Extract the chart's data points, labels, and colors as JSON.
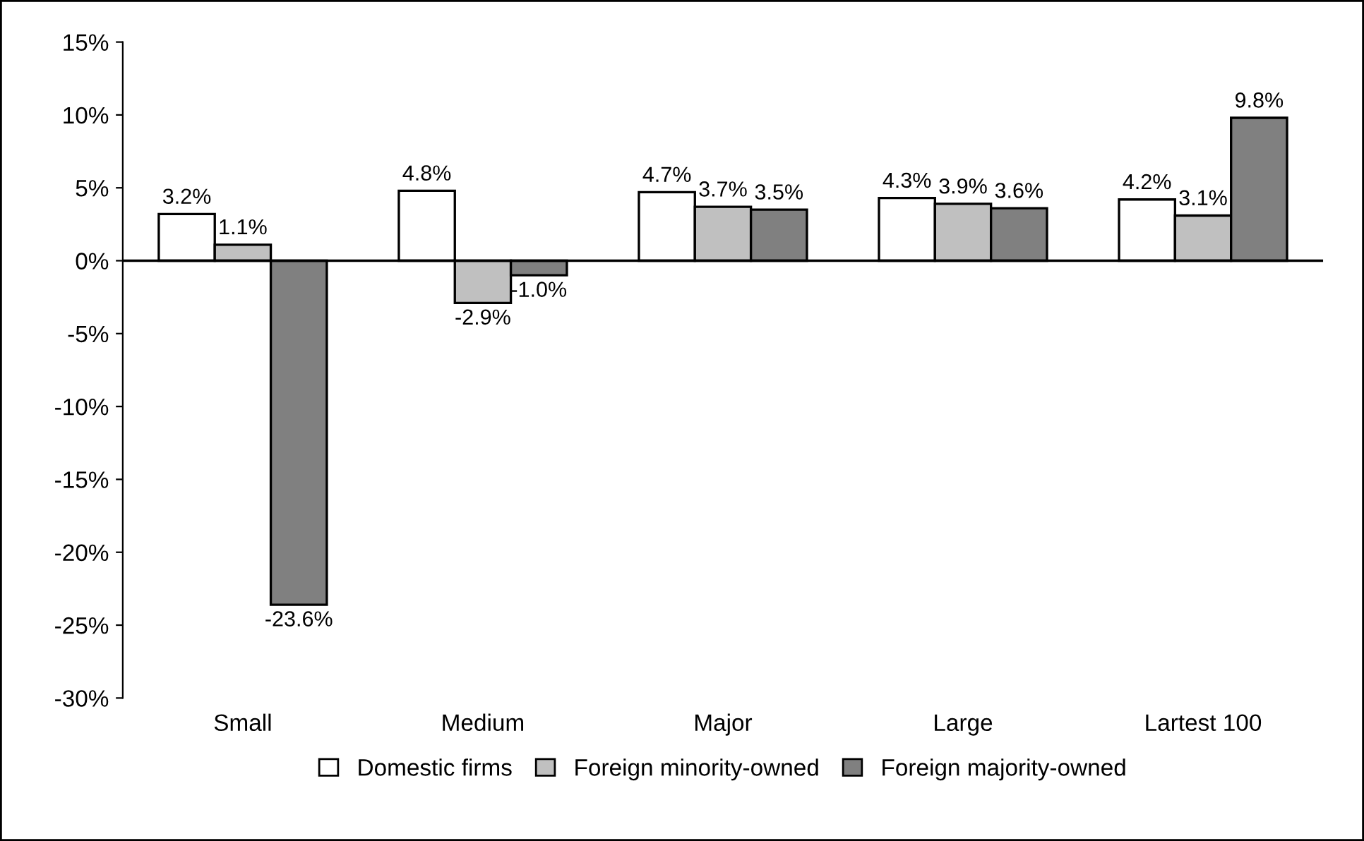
{
  "chart_data": {
    "type": "bar",
    "categories": [
      "Small",
      "Medium",
      "Major",
      "Large",
      "Lartest 100"
    ],
    "series": [
      {
        "name": "Domestic firms",
        "color": "#ffffff",
        "values": [
          3.2,
          4.8,
          4.7,
          4.3,
          4.2
        ],
        "value_labels": [
          "3.2%",
          "4.8%",
          "4.7%",
          "4.3%",
          "4.2%"
        ]
      },
      {
        "name": "Foreign minority-owned",
        "color": "#c0c0c0",
        "values": [
          1.1,
          -2.9,
          3.7,
          3.9,
          3.1
        ],
        "value_labels": [
          "1.1%",
          "-2.9%",
          "3.7%",
          "3.9%",
          "3.1%"
        ]
      },
      {
        "name": "Foreign majority-owned",
        "color": "#808080",
        "values": [
          -23.6,
          -1.0,
          3.5,
          3.6,
          9.8
        ],
        "value_labels": [
          "-23.6%",
          "-1.0%",
          "3.5%",
          "3.6%",
          "9.8%"
        ]
      }
    ],
    "ylim": [
      -30,
      15
    ],
    "yticks": [
      {
        "value": -30,
        "label": "-30%"
      },
      {
        "value": -25,
        "label": "-25%"
      },
      {
        "value": -20,
        "label": "-20%"
      },
      {
        "value": -15,
        "label": "-15%"
      },
      {
        "value": -10,
        "label": "-10%"
      },
      {
        "value": -5,
        "label": "-5%"
      },
      {
        "value": 0,
        "label": "0%"
      },
      {
        "value": 5,
        "label": "5%"
      },
      {
        "value": 10,
        "label": "10%"
      },
      {
        "value": 15,
        "label": "15%"
      }
    ],
    "legend": "bottom"
  }
}
